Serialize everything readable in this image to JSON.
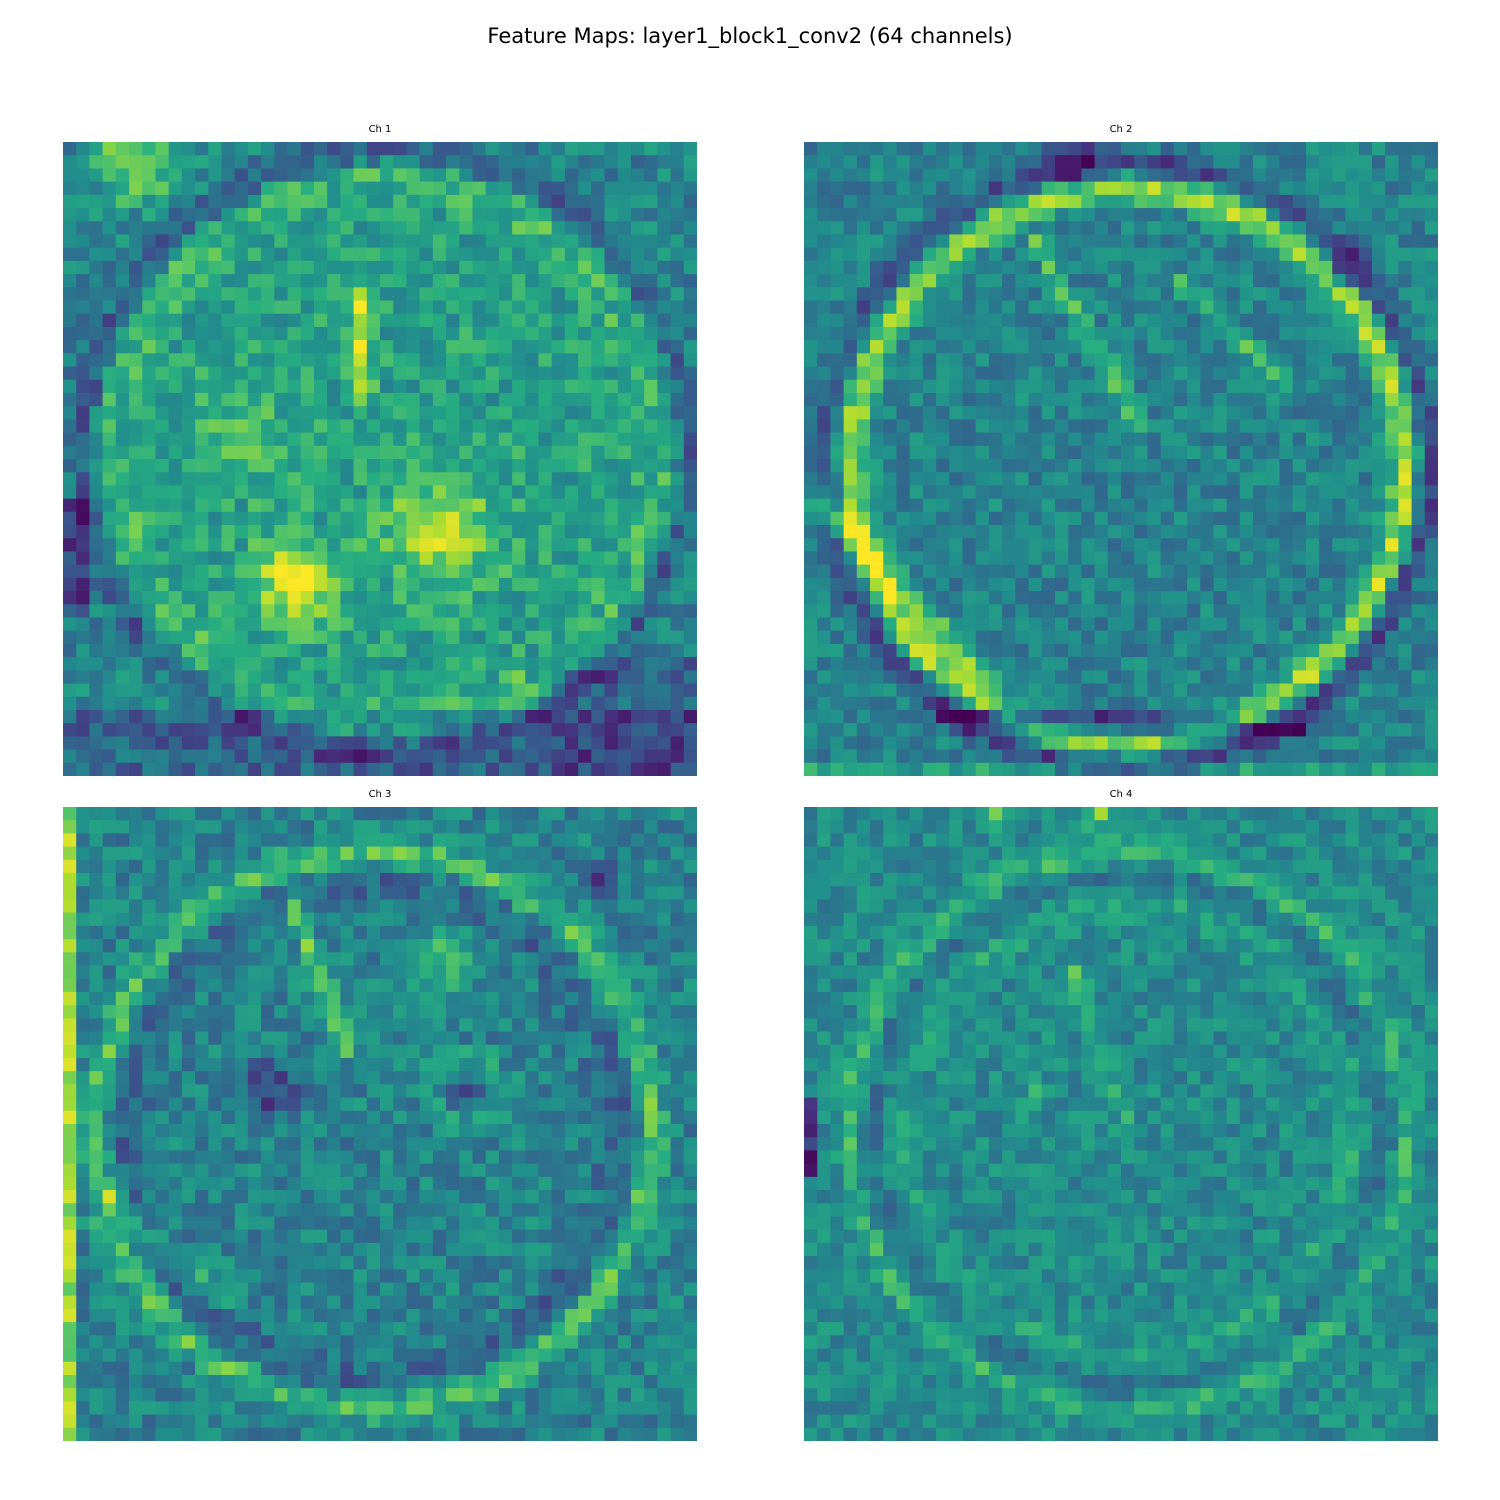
{
  "chart_data": {
    "type": "heatmap",
    "title": "Feature Maps: layer1_block1_conv2 (64 channels)",
    "colormap": "viridis",
    "colors": {
      "low": "#440154",
      "mid": "#21918c",
      "high": "#fde725"
    },
    "grid_size": [
      48,
      48
    ],
    "panels": [
      {
        "title": "Ch 1",
        "pattern": "clock-face, broad bright central regions, bright top-left corner"
      },
      {
        "title": "Ch 2",
        "pattern": "ring edges, strong bright lower-left arc, dark band along bottom"
      },
      {
        "title": "Ch 3",
        "pattern": "ring edges, clock hand and digits highlighted"
      },
      {
        "title": "Ch 4",
        "pattern": "faint concentric ring texture, mostly mid-range values"
      }
    ]
  }
}
